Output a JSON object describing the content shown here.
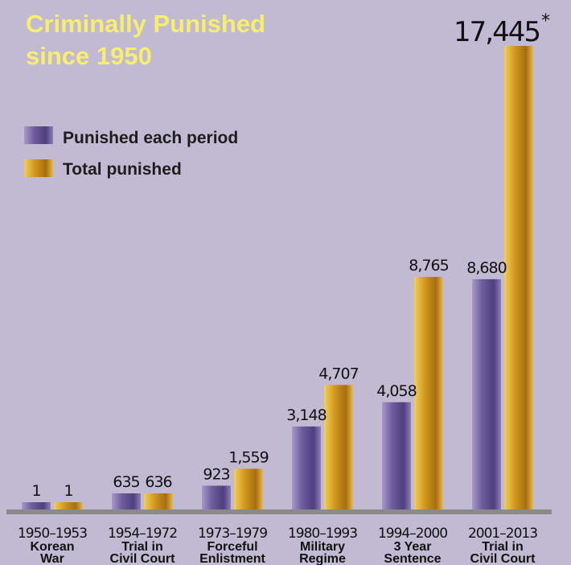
{
  "chart_data": {
    "type": "bar",
    "title": [
      "Criminally Punished",
      "since 1950"
    ],
    "legend": {
      "placement": "top-left",
      "entries": [
        "Punished each period",
        "Total punished"
      ]
    },
    "categories": [
      {
        "period": "1950–1953",
        "label": [
          "Korean",
          "War"
        ]
      },
      {
        "period": "1954–1972",
        "label": [
          "Trial in",
          "Civil Court"
        ]
      },
      {
        "period": "1973–1979",
        "label": [
          "Forceful",
          "Enlistment"
        ]
      },
      {
        "period": "1980–1993",
        "label": [
          "Military",
          "Regime"
        ]
      },
      {
        "period": "1994–2000",
        "label": [
          "3 Year",
          "Sentence"
        ]
      },
      {
        "period": "2001–2013",
        "label": [
          "Trial in",
          "Civil Court"
        ]
      }
    ],
    "series": [
      {
        "name": "Punished each period",
        "color": "#7a68a6",
        "values": [
          1,
          635,
          923,
          3148,
          4058,
          8680
        ],
        "value_labels": [
          "1",
          "635",
          "923",
          "3,148",
          "4,058",
          "8,680"
        ]
      },
      {
        "name": "Total punished",
        "color": "#d6a22a",
        "values": [
          1,
          636,
          1559,
          4707,
          8765,
          17445
        ],
        "value_labels": [
          "1",
          "636",
          "1,559",
          "4,707",
          "8,765",
          "17,445"
        ]
      }
    ],
    "annotation": "*",
    "ylim": [
      0,
      17445
    ],
    "grid": false
  }
}
